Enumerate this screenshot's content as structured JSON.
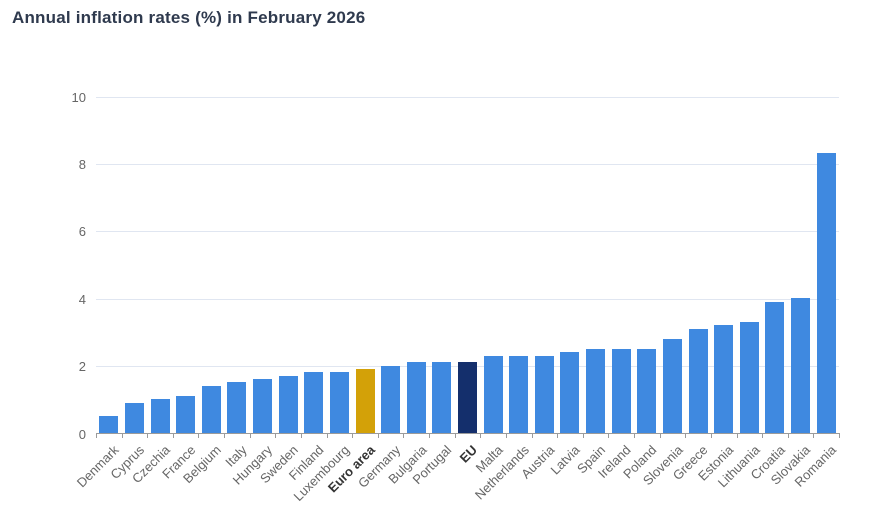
{
  "title": "Annual inflation rates (%) in February 2026",
  "chart_data": {
    "type": "bar",
    "title": "Annual inflation rates (%) in February 2026",
    "categories": [
      "Denmark",
      "Cyprus",
      "Czechia",
      "France",
      "Belgium",
      "Italy",
      "Hungary",
      "Sweden",
      "Finland",
      "Luxembourg",
      "Euro area",
      "Germany",
      "Bulgaria",
      "Portugal",
      "EU",
      "Malta",
      "Netherlands",
      "Austria",
      "Latvia",
      "Spain",
      "Ireland",
      "Poland",
      "Slovenia",
      "Greece",
      "Estonia",
      "Lithuania",
      "Croatia",
      "Slovakia",
      "Romania"
    ],
    "values": [
      0.5,
      0.9,
      1.0,
      1.1,
      1.4,
      1.5,
      1.6,
      1.7,
      1.8,
      1.8,
      1.9,
      2.0,
      2.1,
      2.1,
      2.1,
      2.3,
      2.3,
      2.3,
      2.4,
      2.5,
      2.5,
      2.5,
      2.8,
      3.1,
      3.2,
      3.3,
      3.9,
      4.0,
      8.3
    ],
    "xlabel": "",
    "ylabel": "",
    "ylim": [
      0,
      10
    ],
    "yticks": [
      0,
      2,
      4,
      6,
      8,
      10
    ],
    "grid": true,
    "legend": false,
    "default_bar_color": "#3f89e0",
    "highlighted_bars": [
      {
        "category": "Euro area",
        "color": "#d3a108"
      },
      {
        "category": "EU",
        "color": "#142f6c"
      }
    ],
    "bold_categories": [
      "Euro area",
      "EU"
    ]
  },
  "colors": {
    "background": "#ffffff",
    "title_text": "#2f3a4e",
    "axis_label_text": "#666666",
    "bold_label_text": "#333333",
    "gridline": "#e0e6f1",
    "axis_line": "#9b9b9b"
  }
}
